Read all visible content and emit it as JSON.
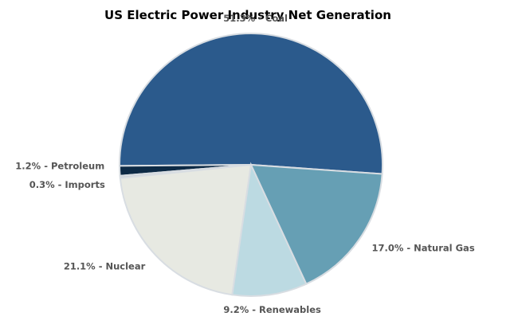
{
  "chart_data": {
    "type": "pie",
    "title": "US Electric Power Industry Net Generation",
    "slices": [
      {
        "label": "51.3% - Coal",
        "category": "Coal",
        "value": 51.3,
        "color": "#2b5a8c"
      },
      {
        "label": "1.2% - Petroleum",
        "category": "Petroleum",
        "value": 1.2,
        "color": "#0d2a45"
      },
      {
        "label": "0.3% - Imports",
        "category": "Imports",
        "value": 0.3,
        "color": "#c9ced3"
      },
      {
        "label": "21.1% - Nuclear",
        "category": "Nuclear",
        "value": 21.1,
        "color": "#e7e9e2"
      },
      {
        "label": "9.2% - Renewables",
        "category": "Renewables",
        "value": 9.2,
        "color": "#bcdae2"
      },
      {
        "label": "17.0% - Natural Gas",
        "category": "Natural Gas",
        "value": 17.0,
        "color": "#669fb4"
      }
    ],
    "slice_border_color": "#d8dde2",
    "label_color": "#555555",
    "legend": "none"
  }
}
